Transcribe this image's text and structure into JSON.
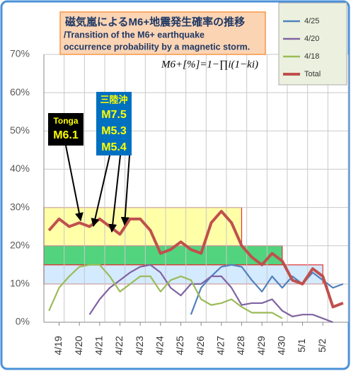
{
  "chart_data": {
    "type": "line",
    "title": "磁気嵐によるM6+地震発生確率の推移",
    "subtitle": [
      "/Transition of the M6+ earthquake",
      "occurrence probability by a magnetic storm."
    ],
    "formula": "M6+[%]=1−∏i(1−ki)",
    "categories": [
      null,
      "4/19",
      null,
      "4/20",
      null,
      "4/21",
      null,
      "4/22",
      null,
      "4/23",
      null,
      "4/24",
      null,
      "4/25",
      null,
      "4/26",
      null,
      "4/27",
      null,
      "4/28",
      null,
      "4/29",
      null,
      "4/30",
      null,
      "5/1",
      null,
      "5/2",
      null,
      null
    ],
    "series": [
      {
        "name": "4/25",
        "color": "#4f81bd",
        "values": [
          null,
          null,
          null,
          null,
          null,
          null,
          null,
          null,
          null,
          null,
          null,
          null,
          null,
          null,
          2,
          9,
          12,
          14.5,
          15,
          14.5,
          11,
          8,
          12,
          9,
          12,
          10,
          13,
          11,
          9,
          10
        ]
      },
      {
        "name": "4/20",
        "color": "#8064a2",
        "values": [
          null,
          null,
          null,
          null,
          2,
          6,
          9,
          11,
          13,
          14.5,
          15,
          13,
          9,
          7,
          10,
          10,
          12,
          12,
          9,
          4.5,
          5,
          5,
          6,
          3,
          1.5,
          2,
          2,
          1,
          0,
          null
        ]
      },
      {
        "name": "4/18",
        "color": "#9bbb59",
        "values": [
          3,
          9,
          12,
          14.5,
          15,
          15,
          12,
          8,
          10,
          12,
          12,
          8,
          11,
          12,
          11,
          6,
          4.5,
          5,
          6,
          4,
          2.5,
          2.5,
          2.5,
          1,
          null,
          null,
          null,
          null,
          null,
          null
        ]
      },
      {
        "name": "Total",
        "color": "#c0504d",
        "values": [
          24,
          27,
          25,
          26,
          25,
          27,
          25,
          23,
          27,
          27,
          24,
          18,
          19,
          21,
          19,
          18,
          26,
          29,
          26,
          20,
          17,
          15,
          18,
          16,
          11,
          10,
          14,
          12,
          4,
          5
        ]
      }
    ],
    "bands": [
      {
        "y": [
          20,
          30
        ],
        "color": "#ffff99",
        "until": "4/28"
      },
      {
        "y": [
          15,
          20
        ],
        "color": "#33cc66",
        "until": "4/30"
      },
      {
        "y": [
          10,
          15
        ],
        "color": "#cce6ff",
        "until": "5/2"
      }
    ],
    "annotations": [
      {
        "lines": [
          "Tonga",
          "M6.1"
        ]
      },
      {
        "lines": [
          "三陸沖",
          "M7.5",
          "M5.3",
          "M5.4"
        ]
      }
    ],
    "ylim": [
      0,
      70
    ],
    "yticks": [
      {
        "value": 0,
        "label": "0%"
      },
      {
        "value": 10,
        "label": "10%"
      },
      {
        "value": 20,
        "label": "20%"
      },
      {
        "value": 30,
        "label": "30%"
      },
      {
        "value": 40,
        "label": "40%"
      },
      {
        "value": 50,
        "label": "50%"
      },
      {
        "value": 60,
        "label": "60%"
      },
      {
        "value": 70,
        "label": "70%"
      }
    ],
    "grid": true
  }
}
